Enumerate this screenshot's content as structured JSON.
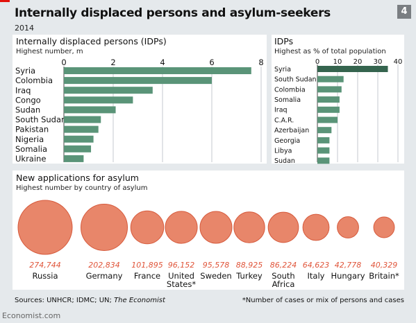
{
  "header": {
    "title": "Internally displaced persons and asylum-seekers",
    "subtitle": "2014",
    "chart_number": "4"
  },
  "panels": {
    "idp": {
      "title": "Internally displaced persons (IDPs)",
      "subtitle": "Highest number, m"
    },
    "pct": {
      "title": "IDPs",
      "subtitle": "Highest as % of total population"
    },
    "asylum": {
      "title": "New applications for asylum",
      "subtitle": "Highest number by country of asylum"
    }
  },
  "footer": {
    "sources_prefix": "Sources: UNHCR; IDMC; UN; ",
    "sources_italic": "The Economist",
    "note": "*Number of cases or mix of persons and cases",
    "brand": "Economist.com"
  },
  "colors": {
    "bar_green": "#5a9478",
    "bar_green_dark": "#35644e",
    "bubble": "#e8866a",
    "bubble_stroke": "#d65a3c",
    "value_text": "#e0553a",
    "background": "#e5e9ec",
    "panel": "#ffffff"
  },
  "chart_data": [
    {
      "type": "bar",
      "orientation": "horizontal",
      "title": "Internally displaced persons (IDPs)",
      "subtitle": "Highest number, m",
      "categories": [
        "Syria",
        "Colombia",
        "Iraq",
        "Congo",
        "Sudan",
        "South Sudan",
        "Pakistan",
        "Nigeria",
        "Somalia",
        "Ukraine"
      ],
      "values": [
        7.6,
        6.0,
        3.6,
        2.8,
        2.1,
        1.5,
        1.4,
        1.2,
        1.1,
        0.8
      ],
      "xlim": [
        0,
        8
      ],
      "xticks": [
        0,
        2,
        4,
        6,
        8
      ],
      "grid": true
    },
    {
      "type": "bar",
      "orientation": "horizontal",
      "title": "IDPs",
      "subtitle": "Highest as % of total population",
      "categories": [
        "Syria",
        "South Sudan",
        "Colombia",
        "Somalia",
        "Iraq",
        "C.A.R.",
        "Azerbaijan",
        "Georgia",
        "Libya",
        "Sudan"
      ],
      "values": [
        35,
        13,
        12,
        11,
        11,
        10,
        7,
        6,
        6,
        6
      ],
      "xlim": [
        0,
        40
      ],
      "xticks": [
        0,
        10,
        20,
        30,
        40
      ],
      "grid": true
    },
    {
      "type": "scatter",
      "encoding": "bubble area proportional to value",
      "title": "New applications for asylum",
      "subtitle": "Highest number by country of asylum",
      "categories": [
        "Russia",
        "Germany",
        "France",
        "United States*",
        "Sweden",
        "Turkey",
        "South Africa",
        "Italy",
        "Hungary",
        "Britain*"
      ],
      "label_lines": [
        [
          "Russia"
        ],
        [
          "Germany"
        ],
        [
          "France"
        ],
        [
          "United",
          "States*"
        ],
        [
          "Sweden"
        ],
        [
          "Turkey"
        ],
        [
          "South",
          "Africa"
        ],
        [
          "Italy"
        ],
        [
          "Hungary"
        ],
        [
          "Britain*"
        ]
      ],
      "values": [
        274744,
        202834,
        101895,
        96152,
        95578,
        88925,
        86224,
        64623,
        42778,
        40329
      ],
      "value_labels": [
        "274,744",
        "202,834",
        "101,895",
        "96,152",
        "95,578",
        "88,925",
        "86,224",
        "64,623",
        "42,778",
        "40,329"
      ]
    }
  ]
}
